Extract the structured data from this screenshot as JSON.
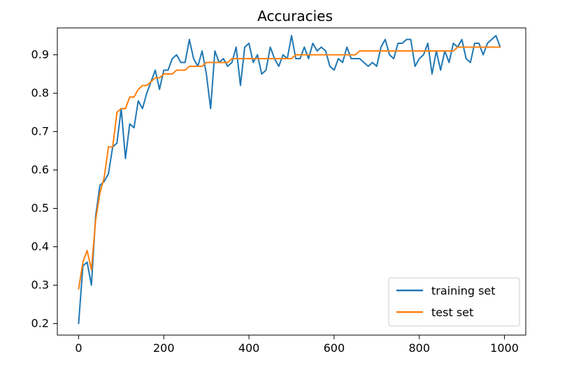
{
  "chart_data": {
    "type": "line",
    "title": "Accuracies",
    "xlabel": "",
    "ylabel": "",
    "xlim": [
      -50,
      1050
    ],
    "ylim": [
      0.17,
      0.97
    ],
    "x_ticks": [
      0,
      200,
      400,
      600,
      800,
      1000
    ],
    "x_tick_labels": [
      "0",
      "200",
      "400",
      "600",
      "800",
      "1000"
    ],
    "y_ticks": [
      0.2,
      0.3,
      0.4,
      0.5,
      0.6,
      0.7,
      0.8,
      0.9
    ],
    "y_tick_labels": [
      "0.2",
      "0.3",
      "0.4",
      "0.5",
      "0.6",
      "0.7",
      "0.8",
      "0.9"
    ],
    "grid": false,
    "legend_position": "bottom-right",
    "series": [
      {
        "name": "training set",
        "color": "#1f77b4",
        "x": [
          0,
          10,
          20,
          30,
          40,
          50,
          60,
          70,
          80,
          90,
          100,
          110,
          120,
          130,
          140,
          150,
          160,
          170,
          180,
          190,
          200,
          210,
          220,
          230,
          240,
          250,
          260,
          270,
          280,
          290,
          300,
          310,
          320,
          330,
          340,
          350,
          360,
          370,
          380,
          390,
          400,
          410,
          420,
          430,
          440,
          450,
          460,
          470,
          480,
          490,
          500,
          510,
          520,
          530,
          540,
          550,
          560,
          570,
          580,
          590,
          600,
          610,
          620,
          630,
          640,
          650,
          660,
          670,
          680,
          690,
          700,
          710,
          720,
          730,
          740,
          750,
          760,
          770,
          780,
          790,
          800,
          810,
          820,
          830,
          840,
          850,
          860,
          870,
          880,
          890,
          900,
          910,
          920,
          930,
          940,
          950,
          960,
          970,
          980,
          990
        ],
        "y": [
          0.2,
          0.35,
          0.36,
          0.3,
          0.48,
          0.56,
          0.57,
          0.59,
          0.66,
          0.67,
          0.76,
          0.63,
          0.72,
          0.71,
          0.78,
          0.76,
          0.8,
          0.83,
          0.86,
          0.81,
          0.86,
          0.86,
          0.89,
          0.9,
          0.88,
          0.88,
          0.94,
          0.89,
          0.87,
          0.91,
          0.85,
          0.76,
          0.91,
          0.88,
          0.89,
          0.87,
          0.88,
          0.92,
          0.82,
          0.92,
          0.93,
          0.88,
          0.9,
          0.85,
          0.86,
          0.92,
          0.89,
          0.87,
          0.9,
          0.89,
          0.95,
          0.89,
          0.89,
          0.92,
          0.89,
          0.93,
          0.91,
          0.92,
          0.91,
          0.87,
          0.86,
          0.89,
          0.88,
          0.92,
          0.89,
          0.89,
          0.89,
          0.88,
          0.87,
          0.88,
          0.87,
          0.92,
          0.94,
          0.9,
          0.89,
          0.93,
          0.93,
          0.94,
          0.94,
          0.87,
          0.89,
          0.9,
          0.93,
          0.85,
          0.91,
          0.86,
          0.91,
          0.88,
          0.93,
          0.92,
          0.94,
          0.89,
          0.88,
          0.93,
          0.93,
          0.9,
          0.93,
          0.94,
          0.95,
          0.92
        ]
      },
      {
        "name": "test set",
        "color": "#ff7f0e",
        "x": [
          0,
          10,
          20,
          30,
          40,
          50,
          60,
          70,
          80,
          90,
          100,
          110,
          120,
          130,
          140,
          150,
          160,
          170,
          180,
          190,
          200,
          210,
          220,
          230,
          240,
          250,
          260,
          270,
          280,
          290,
          300,
          310,
          320,
          330,
          340,
          350,
          360,
          370,
          380,
          390,
          400,
          410,
          420,
          430,
          440,
          450,
          460,
          470,
          480,
          490,
          500,
          510,
          520,
          530,
          540,
          550,
          560,
          570,
          580,
          590,
          600,
          610,
          620,
          630,
          640,
          650,
          660,
          670,
          680,
          690,
          700,
          710,
          720,
          730,
          740,
          750,
          760,
          770,
          780,
          790,
          800,
          810,
          820,
          830,
          840,
          850,
          860,
          870,
          880,
          890,
          900,
          910,
          920,
          930,
          940,
          950,
          960,
          970,
          980,
          990
        ],
        "y": [
          0.29,
          0.36,
          0.39,
          0.34,
          0.47,
          0.54,
          0.58,
          0.66,
          0.66,
          0.75,
          0.76,
          0.76,
          0.79,
          0.79,
          0.81,
          0.82,
          0.82,
          0.83,
          0.84,
          0.84,
          0.85,
          0.85,
          0.85,
          0.86,
          0.86,
          0.86,
          0.87,
          0.87,
          0.87,
          0.87,
          0.88,
          0.88,
          0.88,
          0.88,
          0.88,
          0.88,
          0.89,
          0.89,
          0.89,
          0.89,
          0.89,
          0.89,
          0.89,
          0.89,
          0.89,
          0.89,
          0.89,
          0.89,
          0.89,
          0.89,
          0.89,
          0.9,
          0.9,
          0.9,
          0.9,
          0.9,
          0.9,
          0.9,
          0.9,
          0.9,
          0.9,
          0.9,
          0.9,
          0.9,
          0.9,
          0.9,
          0.91,
          0.91,
          0.91,
          0.91,
          0.91,
          0.91,
          0.91,
          0.91,
          0.91,
          0.91,
          0.91,
          0.91,
          0.91,
          0.91,
          0.91,
          0.91,
          0.91,
          0.91,
          0.91,
          0.91,
          0.91,
          0.91,
          0.91,
          0.92,
          0.92,
          0.92,
          0.92,
          0.92,
          0.92,
          0.92,
          0.92,
          0.92,
          0.92,
          0.92
        ]
      }
    ]
  }
}
